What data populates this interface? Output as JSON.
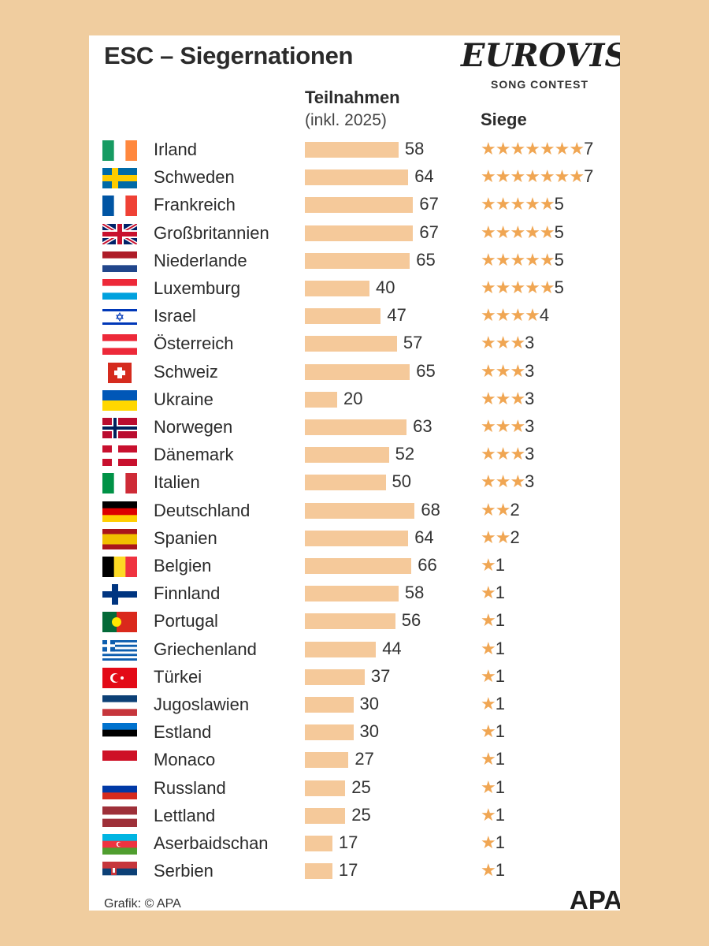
{
  "header": {
    "title": "ESC – Siegernationen",
    "logo_word": "EUROVISION",
    "logo_sub": "SONG CONTEST",
    "col_participations": "Teilnahmen",
    "col_participations_sub": "(inkl. 2025)",
    "col_wins": "Siege"
  },
  "footer": {
    "credit": "Grafik: © APA",
    "brand": "APA"
  },
  "colors": {
    "bar": "#f5c99a",
    "star": "#f0a653",
    "background": "#f0cd9f"
  },
  "chart_data": {
    "type": "bar",
    "title": "ESC – Siegernationen",
    "series": [
      {
        "name": "Teilnahmen",
        "values": [
          58,
          64,
          67,
          67,
          65,
          40,
          47,
          57,
          65,
          20,
          63,
          52,
          50,
          68,
          64,
          66,
          58,
          56,
          44,
          37,
          30,
          30,
          27,
          25,
          25,
          17,
          17
        ]
      },
      {
        "name": "Siege",
        "values": [
          7,
          7,
          5,
          5,
          5,
          5,
          4,
          3,
          3,
          3,
          3,
          3,
          3,
          2,
          2,
          1,
          1,
          1,
          1,
          1,
          1,
          1,
          1,
          1,
          1,
          1,
          1
        ]
      }
    ],
    "categories": [
      "Irland",
      "Schweden",
      "Frankreich",
      "Großbritannien",
      "Niederlande",
      "Luxemburg",
      "Israel",
      "Österreich",
      "Schweiz",
      "Ukraine",
      "Norwegen",
      "Dänemark",
      "Italien",
      "Deutschland",
      "Spanien",
      "Belgien",
      "Finnland",
      "Portugal",
      "Griechenland",
      "Türkei",
      "Jugoslawien",
      "Estland",
      "Monaco",
      "Russland",
      "Lettland",
      "Aserbaidschan",
      "Serbien"
    ],
    "rows": [
      {
        "country": "Irland",
        "participations": 58,
        "wins": 7,
        "flag": "flag-ireland"
      },
      {
        "country": "Schweden",
        "participations": 64,
        "wins": 7,
        "flag": "flag-sweden"
      },
      {
        "country": "Frankreich",
        "participations": 67,
        "wins": 5,
        "flag": "flag-france"
      },
      {
        "country": "Großbritannien",
        "participations": 67,
        "wins": 5,
        "flag": "flag-uk"
      },
      {
        "country": "Niederlande",
        "participations": 65,
        "wins": 5,
        "flag": "flag-netherlands"
      },
      {
        "country": "Luxemburg",
        "participations": 40,
        "wins": 5,
        "flag": "flag-luxembourg"
      },
      {
        "country": "Israel",
        "participations": 47,
        "wins": 4,
        "flag": "flag-israel"
      },
      {
        "country": "Österreich",
        "participations": 57,
        "wins": 3,
        "flag": "flag-austria"
      },
      {
        "country": "Schweiz",
        "participations": 65,
        "wins": 3,
        "flag": "flag-switzerland"
      },
      {
        "country": "Ukraine",
        "participations": 20,
        "wins": 3,
        "flag": "flag-ukraine"
      },
      {
        "country": "Norwegen",
        "participations": 63,
        "wins": 3,
        "flag": "flag-norway"
      },
      {
        "country": "Dänemark",
        "participations": 52,
        "wins": 3,
        "flag": "flag-denmark"
      },
      {
        "country": "Italien",
        "participations": 50,
        "wins": 3,
        "flag": "flag-italy"
      },
      {
        "country": "Deutschland",
        "participations": 68,
        "wins": 2,
        "flag": "flag-germany"
      },
      {
        "country": "Spanien",
        "participations": 64,
        "wins": 2,
        "flag": "flag-spain"
      },
      {
        "country": "Belgien",
        "participations": 66,
        "wins": 1,
        "flag": "flag-belgium"
      },
      {
        "country": "Finnland",
        "participations": 58,
        "wins": 1,
        "flag": "flag-finland"
      },
      {
        "country": "Portugal",
        "participations": 56,
        "wins": 1,
        "flag": "flag-portugal"
      },
      {
        "country": "Griechenland",
        "participations": 44,
        "wins": 1,
        "flag": "flag-greece"
      },
      {
        "country": "Türkei",
        "participations": 37,
        "wins": 1,
        "flag": "flag-turkey"
      },
      {
        "country": "Jugoslawien",
        "participations": 30,
        "wins": 1,
        "flag": "flag-yugoslavia"
      },
      {
        "country": "Estland",
        "participations": 30,
        "wins": 1,
        "flag": "flag-estonia"
      },
      {
        "country": "Monaco",
        "participations": 27,
        "wins": 1,
        "flag": "flag-monaco"
      },
      {
        "country": "Russland",
        "participations": 25,
        "wins": 1,
        "flag": "flag-russia"
      },
      {
        "country": "Lettland",
        "participations": 25,
        "wins": 1,
        "flag": "flag-latvia"
      },
      {
        "country": "Aserbaidschan",
        "participations": 17,
        "wins": 1,
        "flag": "flag-azerbaijan"
      },
      {
        "country": "Serbien",
        "participations": 17,
        "wins": 1,
        "flag": "flag-serbia"
      }
    ]
  }
}
